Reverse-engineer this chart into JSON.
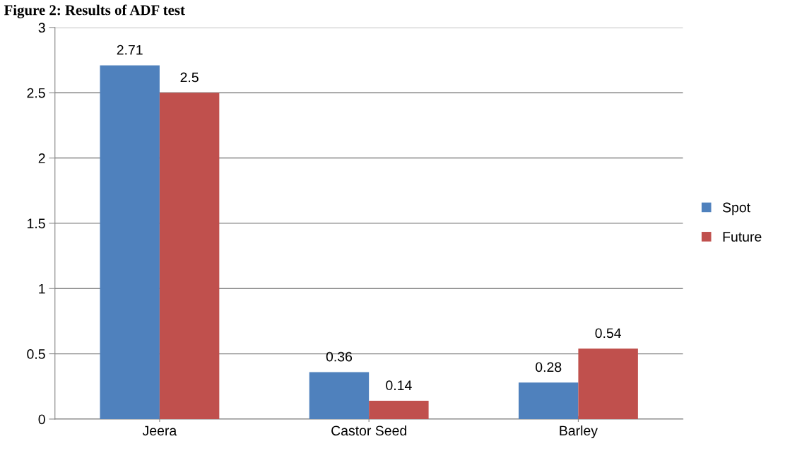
{
  "chart_data": {
    "type": "bar",
    "title": "Figure 2: Results of ADF test",
    "categories": [
      "Jeera",
      "Castor Seed",
      "Barley"
    ],
    "series": [
      {
        "name": "Spot",
        "color": "#4f81bd",
        "values": [
          2.71,
          0.36,
          0.28
        ]
      },
      {
        "name": "Future",
        "color": "#c0504d",
        "values": [
          2.5,
          0.14,
          0.54
        ]
      }
    ],
    "ylim": [
      0,
      3
    ],
    "yticks": [
      0,
      0.5,
      1,
      1.5,
      2,
      2.5,
      3
    ],
    "grid": "y",
    "legend": "right",
    "data_labels": true
  }
}
